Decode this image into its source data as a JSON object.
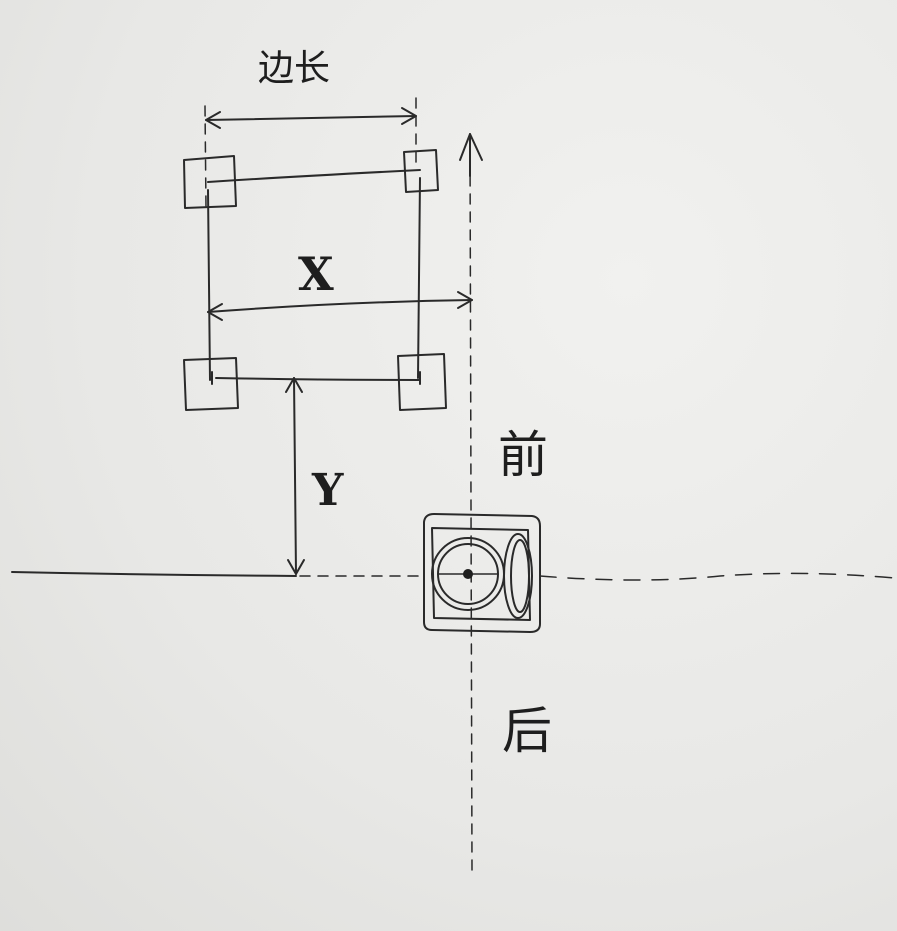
{
  "labels": {
    "side_length": "边长",
    "x": "X",
    "y": "Y",
    "front": "前",
    "back": "后"
  },
  "colors": {
    "ink": "#2a2a2a",
    "paper": "#ececea"
  }
}
